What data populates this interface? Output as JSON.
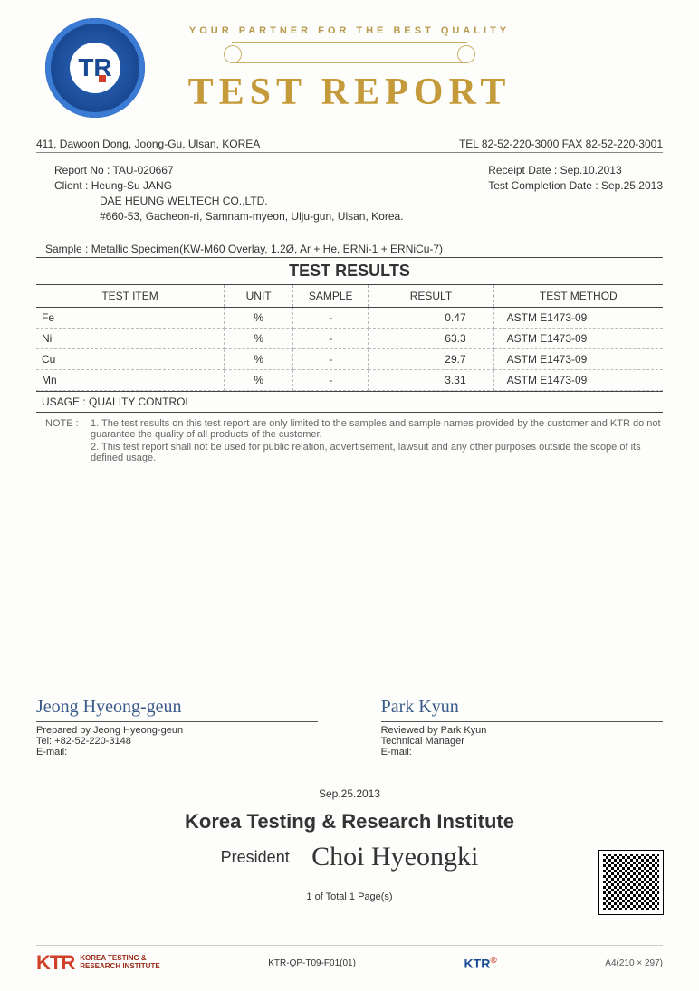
{
  "header": {
    "tagline": "YOUR PARTNER FOR THE BEST QUALITY",
    "title": "TEST REPORT",
    "address": "411, Dawoon Dong, Joong-Gu, Ulsan, KOREA",
    "contact": "TEL 82-52-220-3000  FAX 82-52-220-3001",
    "seal_text": "TR"
  },
  "meta": {
    "report_no_label": "Report No : ",
    "report_no": "TAU-020667",
    "client_label": "Client : ",
    "client_name": "Heung-Su JANG",
    "client_company": "DAE HEUNG WELTECH CO.,LTD.",
    "client_address": "#660-53, Gacheon-ri, Samnam-myeon, Ulju-gun, Ulsan, Korea.",
    "receipt_label": "Receipt Date : ",
    "receipt_date": "Sep.10.2013",
    "completion_label": "Test Completion Date : ",
    "completion_date": "Sep.25.2013"
  },
  "sample": {
    "label": "Sample : ",
    "value": "Metallic Specimen(KW-M60 Overlay, 1.2Ø,  Ar + He, ERNi-1 + ERNiCu-7)"
  },
  "table": {
    "title": "TEST RESULTS",
    "headers": {
      "item": "TEST ITEM",
      "unit": "UNIT",
      "sample": "SAMPLE",
      "result": "RESULT",
      "method": "TEST METHOD"
    },
    "rows": [
      {
        "item": "Fe",
        "unit": "%",
        "sample": "-",
        "result": "0.47",
        "method": "ASTM E1473-09"
      },
      {
        "item": "Ni",
        "unit": "%",
        "sample": "-",
        "result": "63.3",
        "method": "ASTM E1473-09"
      },
      {
        "item": "Cu",
        "unit": "%",
        "sample": "-",
        "result": "29.7",
        "method": "ASTM E1473-09"
      },
      {
        "item": "Mn",
        "unit": "%",
        "sample": "-",
        "result": "3.31",
        "method": "ASTM E1473-09"
      }
    ]
  },
  "usage": {
    "label": "USAGE : ",
    "value": "QUALITY CONTROL"
  },
  "note": {
    "label": "NOTE :",
    "line1": "1. The test results on this test report are only limited to the samples and sample names provided by the customer and KTR do not guarantee the quality of all products of the customer.",
    "line2": "2. This test report shall not be used for public relation, advertisement, lawsuit and any other purposes outside the scope of its defined usage."
  },
  "sign": {
    "prep_name_script": "Jeong Hyeong-geun",
    "prep_by": "Prepared by Jeong Hyeong-geun",
    "prep_tel": "Tel: +82-52-220-3148",
    "prep_email": "E-mail:",
    "rev_name_script": "Park Kyun",
    "rev_by": "Reviewed by Park Kyun",
    "rev_title": "Technical Manager",
    "rev_email": "E-mail:"
  },
  "center": {
    "date": "Sep.25.2013",
    "institute": "Korea Testing & Research Institute",
    "president_label": "President",
    "president_sig": "Choi  Hyeongki",
    "page": "1  of Total   1  Page(s)"
  },
  "footer": {
    "ktr_mark": "KTR",
    "ktr_text1": "KOREA TESTING &",
    "ktr_text2": "RESEARCH INSTITUTE",
    "form_no": "KTR-QP-T09-F01(01)",
    "ktr_small": "KTR",
    "a4": "A4(210 × 297)"
  },
  "colors": {
    "gold": "#c49a3a",
    "seal_blue": "#1b4a94",
    "accent_red": "#d04028",
    "text": "#333333"
  }
}
